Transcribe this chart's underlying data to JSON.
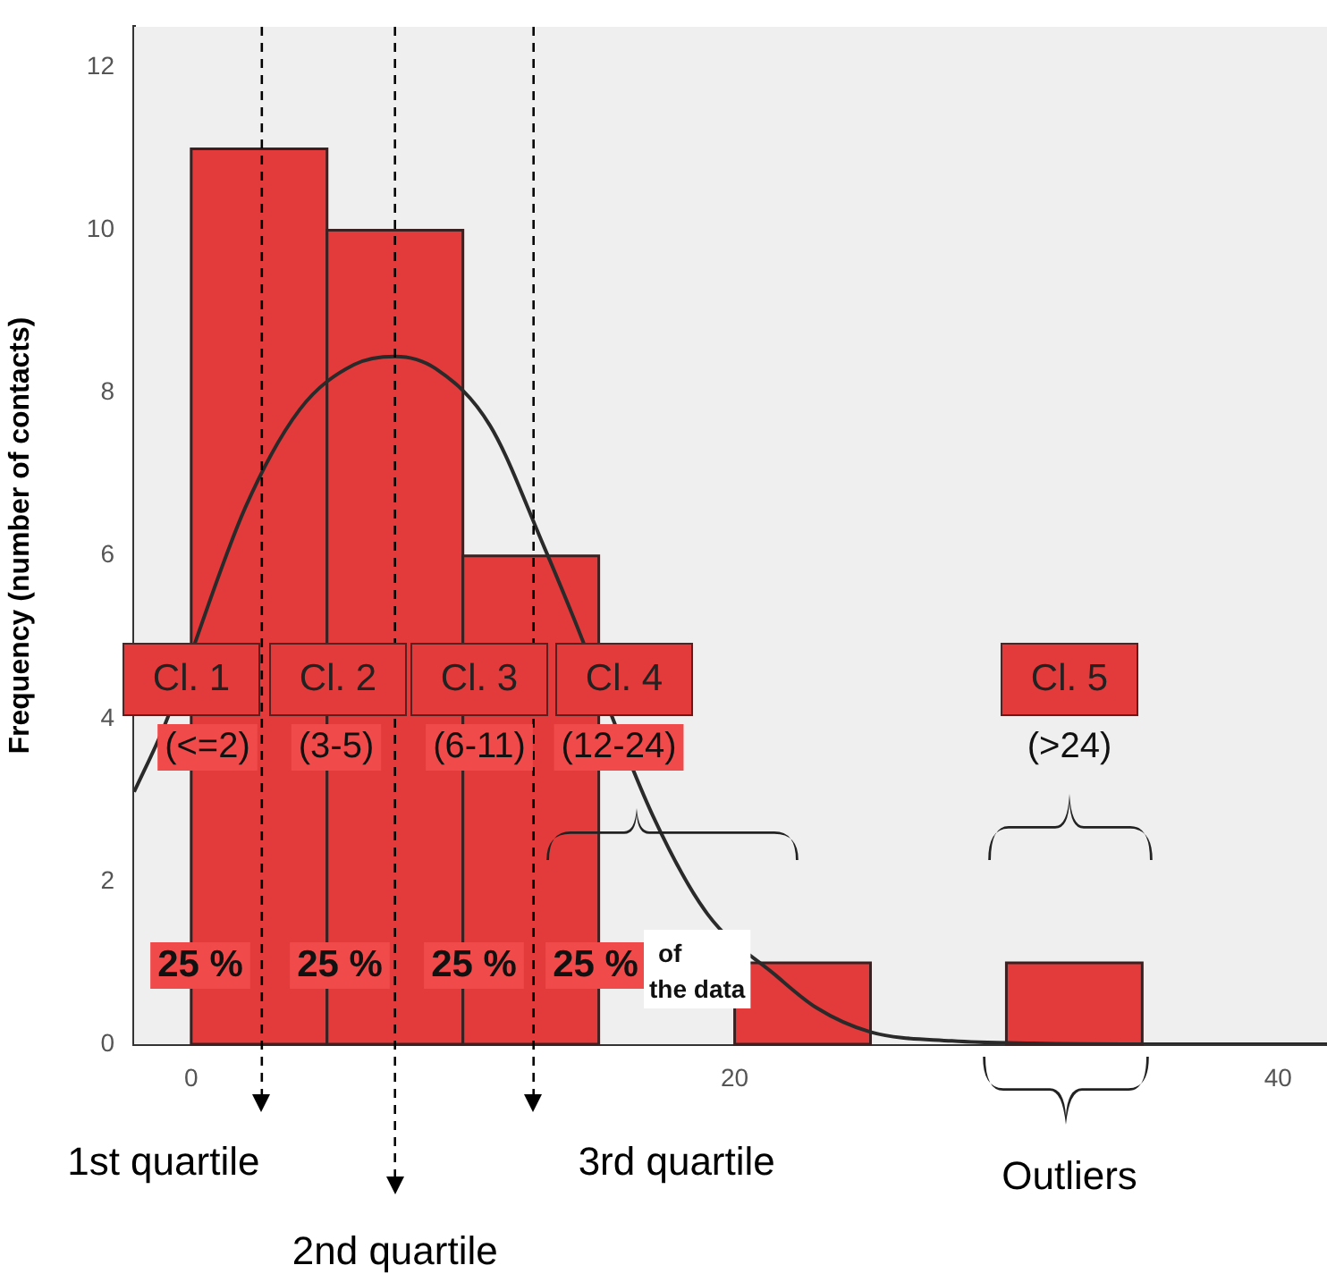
{
  "chart_data": {
    "type": "histogram",
    "ylabel": "Frequency (number of contacts)",
    "bins": [
      0,
      5,
      10,
      15,
      20,
      25,
      30,
      35
    ],
    "values": [
      11,
      10,
      6,
      0,
      1,
      0,
      1
    ],
    "color": "#e33b3b",
    "xlim": [
      -2.1,
      41.8
    ],
    "xticks": [
      0,
      20,
      40
    ],
    "ylim": [
      0,
      12.5
    ],
    "yticks": [
      0,
      2,
      4,
      6,
      8,
      10,
      12
    ],
    "grid": false,
    "series": [
      {
        "type": "line",
        "color": "#2a2a2a",
        "x": [
          -2.1,
          -1,
          2,
          4,
          6,
          7.5,
          9,
          11,
          13,
          14,
          17,
          19,
          21.5,
          23,
          25,
          28,
          31,
          35,
          41.8
        ],
        "values": [
          3.1,
          3.9,
          6.6,
          7.8,
          8.35,
          8.45,
          8.3,
          7.6,
          6.1,
          5.3,
          2.8,
          1.6,
          0.85,
          0.45,
          0.15,
          0.04,
          0.01,
          0,
          0
        ]
      }
    ],
    "ref_lines": [
      {
        "axis": "x",
        "value": 2.6,
        "label": "1st quartile",
        "color": "#000000",
        "line_style": "dashed"
      },
      {
        "axis": "x",
        "value": 7.5,
        "label": "2nd quartile",
        "color": "#000000",
        "line_style": "dashed"
      },
      {
        "axis": "x",
        "value": 12.6,
        "label": "3rd quartile",
        "color": "#000000",
        "line_style": "dashed"
      }
    ],
    "annotations": [
      "Cl. 1",
      "Cl. 2",
      "Cl. 3",
      "Cl. 4",
      "Cl. 5",
      "(<=2)",
      "(3-5)",
      "(6-11)",
      "(12-24)",
      "(>24)",
      "25 %",
      "25 %",
      "25 %",
      "25 %",
      "of the data",
      "Outliers"
    ]
  }
}
